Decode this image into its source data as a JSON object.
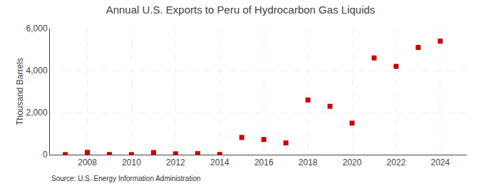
{
  "chart_data": {
    "type": "scatter",
    "title": "Annual U.S. Exports to Peru of Hydrocarbon Gas Liquids",
    "ylabel": "Thousand Barrels",
    "source": "Source: U.S. Energy Information Administration",
    "x": [
      2007,
      2008,
      2009,
      2010,
      2011,
      2012,
      2013,
      2014,
      2015,
      2016,
      2017,
      2018,
      2019,
      2020,
      2021,
      2022,
      2023,
      2024
    ],
    "values": [
      5,
      110,
      10,
      5,
      100,
      40,
      50,
      10,
      820,
      720,
      560,
      2600,
      2300,
      1500,
      4600,
      4200,
      5100,
      5400
    ],
    "color": "#cc0000",
    "marker": "square",
    "xlim": [
      2006.3,
      2025.2
    ],
    "xticks": [
      2008,
      2010,
      2012,
      2014,
      2016,
      2018,
      2020,
      2022,
      2024
    ],
    "ylim": [
      0,
      6000
    ],
    "yticks": [
      0,
      {
        "value": 2000,
        "label": "2,000"
      },
      {
        "value": 4000,
        "label": "4,000"
      },
      {
        "value": 6000,
        "label": "6,000"
      }
    ],
    "grid": true
  }
}
